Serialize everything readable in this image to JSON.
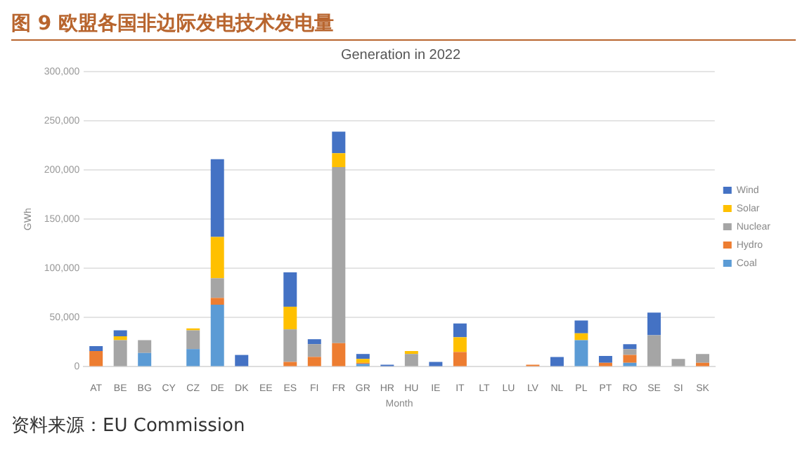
{
  "chart_data": {
    "type": "bar",
    "title": "图 9 欧盟各国非边际发电技术发电量",
    "subtitle": "Generation in 2022",
    "xlabel": "Month",
    "ylabel": "GWh",
    "annotations": [
      "资料来源：EU Commission"
    ],
    "categories": [
      "AT",
      "BE",
      "BG",
      "CY",
      "CZ",
      "DE",
      "DK",
      "EE",
      "ES",
      "FI",
      "FR",
      "GR",
      "HR",
      "HU",
      "IE",
      "IT",
      "LT",
      "LU",
      "LV",
      "NL",
      "PL",
      "PT",
      "RO",
      "SE",
      "SI",
      "SK"
    ],
    "stacked": true,
    "grid": "y",
    "legend": "right",
    "ylim": [
      0,
      300000
    ],
    "yticks": [
      0,
      {
        "value": 50000,
        "label": "50,000"
      },
      {
        "value": 100000,
        "label": "100,000"
      },
      {
        "value": 150000,
        "label": "150,000"
      },
      {
        "value": 200000,
        "label": "200,000"
      },
      {
        "value": 250000,
        "label": "250,000"
      },
      {
        "value": 300000,
        "label": "300,000"
      }
    ],
    "series": [
      {
        "name": "Coal",
        "color": "#5b9bd5",
        "values": [
          0,
          0,
          14000,
          0,
          18000,
          63000,
          0,
          0,
          0,
          0,
          0,
          3000,
          0,
          0,
          0,
          0,
          0,
          0,
          0,
          0,
          27000,
          0,
          4000,
          0,
          0,
          0
        ]
      },
      {
        "name": "Hydro",
        "color": "#ed7d31",
        "values": [
          16000,
          0,
          0,
          0,
          0,
          7000,
          0,
          0,
          5000,
          10000,
          24000,
          1000,
          0,
          0,
          0,
          15000,
          0,
          0,
          2000,
          0,
          0,
          4000,
          8000,
          0,
          0,
          4000
        ]
      },
      {
        "name": "Nuclear",
        "color": "#a5a5a5",
        "values": [
          0,
          27000,
          13000,
          0,
          19000,
          20000,
          0,
          0,
          33000,
          13000,
          179000,
          0,
          0,
          13000,
          0,
          0,
          null,
          0,
          0,
          null,
          0,
          0,
          6000,
          32000,
          8000,
          9000
        ]
      },
      {
        "name": "Solar",
        "color": "#ffc000",
        "values": [
          0,
          4000,
          0,
          0,
          2000,
          42000,
          0,
          0,
          23000,
          0,
          14000,
          4000,
          0,
          3000,
          0,
          15000,
          0,
          0,
          0,
          0,
          7000,
          0,
          0,
          0,
          0,
          0
        ]
      },
      {
        "name": "Wind",
        "color": "#4472c4",
        "values": [
          5000,
          6000,
          0,
          0,
          0,
          79000,
          12000,
          null,
          35000,
          5000,
          22000,
          5000,
          2000,
          0,
          5000,
          14000,
          0,
          0,
          0,
          10000,
          13000,
          7000,
          5000,
          23000,
          0,
          0
        ]
      }
    ]
  }
}
